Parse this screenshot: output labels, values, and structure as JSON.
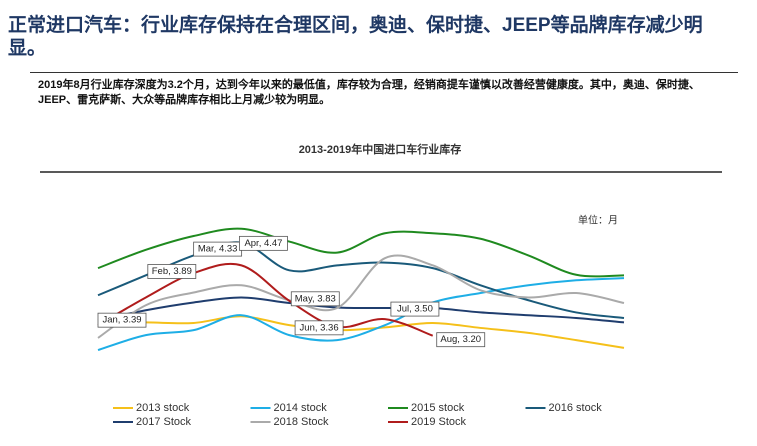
{
  "header": {
    "title": "正常进口汽车：行业库存保持在合理区间，奥迪、保时捷、JEEP等品牌库存减少明显。",
    "body": "2019年8月行业库存深度为3.2个月，达到今年以来的最低值，库存较为合理，经销商提车谨慎以改善经营健康度。其中，奥迪、保时捷、JEEP、雷克萨斯、大众等品牌库存相比上月减少较为明显。"
  },
  "chart_data": {
    "type": "line",
    "title": "2013-2019年中国进口车行业库存",
    "unit_label": "单位：月",
    "ylim": [
      2.4,
      5.65
    ],
    "series": [
      {
        "name": "2013 stock",
        "color": "#f5c01a",
        "values": [
          3.44,
          3.44,
          3.43,
          3.55,
          3.39,
          3.3,
          3.35,
          3.43,
          3.34,
          3.25,
          3.12,
          2.98
        ]
      },
      {
        "name": "2014 stock",
        "color": "#1eaee6",
        "values": [
          2.94,
          3.21,
          3.3,
          3.57,
          3.21,
          3.12,
          3.39,
          3.8,
          3.97,
          4.11,
          4.2,
          4.24
        ]
      },
      {
        "name": "2015 stock",
        "color": "#1f8a1f",
        "values": [
          4.42,
          4.75,
          5.0,
          5.13,
          4.9,
          4.7,
          5.05,
          5.05,
          4.95,
          4.65,
          4.3,
          4.29
        ]
      },
      {
        "name": "2016 stock",
        "color": "#1a5a7a",
        "values": [
          3.93,
          4.29,
          4.65,
          4.88,
          4.38,
          4.47,
          4.52,
          4.42,
          4.11,
          3.84,
          3.62,
          3.52
        ]
      },
      {
        "name": "2017 Stock",
        "color": "#1f3d6e",
        "values": [
          3.48,
          3.66,
          3.8,
          3.89,
          3.79,
          3.71,
          3.7,
          3.7,
          3.62,
          3.57,
          3.52,
          3.44
        ]
      },
      {
        "name": "2018 Stock",
        "color": "#aaaaaa",
        "values": [
          3.16,
          3.75,
          3.98,
          4.11,
          3.84,
          3.7,
          4.6,
          4.47,
          4.02,
          3.89,
          3.97,
          3.79
        ]
      },
      {
        "name": "2019 Stock",
        "color": "#b01c1c",
        "values": [
          3.39,
          3.89,
          4.33,
          4.47,
          3.83,
          3.36,
          3.5,
          3.2,
          null,
          null,
          null,
          null
        ],
        "value_labels": [
          "Jan, 3.39",
          "Feb, 3.89",
          "Mar, 4.33",
          "Apr, 4.47",
          "May, 3.83",
          "Jun, 3.36",
          "Jul, 3.50",
          "Aug, 3.20",
          null,
          null,
          null,
          null
        ]
      }
    ]
  }
}
